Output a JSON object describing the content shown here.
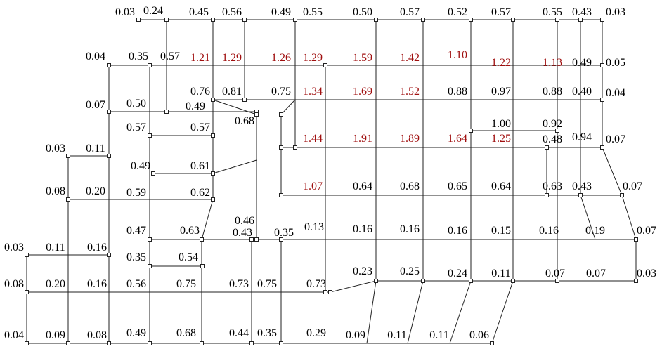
{
  "labels": [
    "0.03",
    "0.24",
    "0.45",
    "0.56",
    "0.49",
    "0.55",
    "0.50",
    "0.57",
    "0.52",
    "0.57",
    "0.55",
    "0.43",
    "0.03",
    "0.04",
    "0.35",
    "0.57",
    "1.21",
    "1.29",
    "1.26",
    "1.29",
    "1.59",
    "1.42",
    "1.10",
    "1.22",
    "1.13",
    "0.49",
    "0.05",
    "0.76",
    "0.81",
    "0.75",
    "1.34",
    "1.69",
    "1.52",
    "0.88",
    "0.97",
    "0.88",
    "0.40",
    "0.04",
    "0.07",
    "0.50",
    "0.49",
    "0.57",
    "0.57",
    "0.68",
    "1.00",
    "0.92",
    "1.44",
    "1.91",
    "1.89",
    "1.64",
    "1.25",
    "0.48",
    "0.94",
    "0.07",
    "0.03",
    "0.11",
    "0.49",
    "0.61",
    "1.07",
    "0.64",
    "0.68",
    "0.65",
    "0.64",
    "0.63",
    "0.43",
    "0.07",
    "0.08",
    "0.20",
    "0.59",
    "0.62",
    "0.46",
    "0.13",
    "0.47",
    "0.63",
    "0.43",
    "0.35",
    "0.16",
    "0.16",
    "0.16",
    "0.15",
    "0.16",
    "0.19",
    "0.07",
    "0.03",
    "0.11",
    "0.16",
    "0.35",
    "0.54",
    "0.23",
    "0.25",
    "0.24",
    "0.11",
    "0.07",
    "0.07",
    "0.03",
    "0.08",
    "0.20",
    "0.16",
    "0.56",
    "0.75",
    "0.73",
    "0.75",
    "0.73",
    "0.04",
    "0.09",
    "0.08",
    "0.49",
    "0.68",
    "0.44",
    "0.35",
    "0.29",
    "0.09",
    "0.11",
    "0.11",
    "0.06"
  ]
}
